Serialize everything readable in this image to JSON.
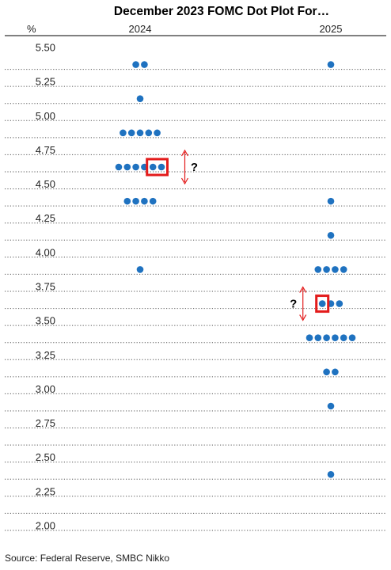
{
  "chart_data": {
    "type": "scatter",
    "title": "December 2023 FOMC Dot Plot For…",
    "y_unit_label": "%",
    "columns": [
      "2024",
      "2025"
    ],
    "ylim": [
      2.0,
      5.5
    ],
    "y_ticks": [
      "5.50",
      "5.25",
      "5.00",
      "4.75",
      "4.50",
      "4.25",
      "4.00",
      "3.75",
      "3.50",
      "3.25",
      "3.00",
      "2.75",
      "2.50",
      "2.25",
      "2.00"
    ],
    "grid": "dotted-horizontal",
    "dot_color": "#1f72c0",
    "highlight_color": "#e31b1b",
    "dots": {
      "2024": [
        {
          "rate": 5.375,
          "count": 2
        },
        {
          "rate": 5.125,
          "count": 1
        },
        {
          "rate": 4.875,
          "count": 5
        },
        {
          "rate": 4.625,
          "count": 6
        },
        {
          "rate": 4.375,
          "count": 4
        },
        {
          "rate": 3.875,
          "count": 1
        }
      ],
      "2025": [
        {
          "rate": 5.375,
          "count": 1
        },
        {
          "rate": 4.375,
          "count": 1
        },
        {
          "rate": 4.125,
          "count": 1
        },
        {
          "rate": 3.875,
          "count": 4
        },
        {
          "rate": 3.625,
          "count": 3
        },
        {
          "rate": 3.375,
          "count": 6
        },
        {
          "rate": 3.125,
          "count": 2
        },
        {
          "rate": 2.875,
          "count": 1
        },
        {
          "rate": 2.375,
          "count": 1
        }
      ]
    },
    "annotations": [
      {
        "column": "2024",
        "rate": 4.625,
        "boxed_dots": 2,
        "label": "?"
      },
      {
        "column": "2025",
        "rate": 3.625,
        "boxed_dots": 1,
        "label": "?"
      }
    ]
  },
  "source": "Source: Federal Reserve, SMBC Nikko"
}
